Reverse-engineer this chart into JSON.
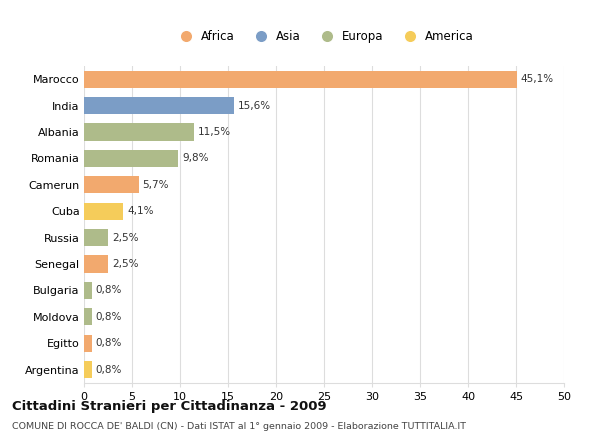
{
  "categories": [
    "Marocco",
    "India",
    "Albania",
    "Romania",
    "Camerun",
    "Cuba",
    "Russia",
    "Senegal",
    "Bulgaria",
    "Moldova",
    "Egitto",
    "Argentina"
  ],
  "values": [
    45.1,
    15.6,
    11.5,
    9.8,
    5.7,
    4.1,
    2.5,
    2.5,
    0.8,
    0.8,
    0.8,
    0.8
  ],
  "labels": [
    "45,1%",
    "15,6%",
    "11,5%",
    "9,8%",
    "5,7%",
    "4,1%",
    "2,5%",
    "2,5%",
    "0,8%",
    "0,8%",
    "0,8%",
    "0,8%"
  ],
  "colors": [
    "#F2A96E",
    "#7B9DC6",
    "#AEBB8A",
    "#AEBB8A",
    "#F2A96E",
    "#F5CC5A",
    "#AEBB8A",
    "#F2A96E",
    "#AEBB8A",
    "#AEBB8A",
    "#F2A96E",
    "#F5CC5A"
  ],
  "legend_labels": [
    "Africa",
    "Asia",
    "Europa",
    "America"
  ],
  "legend_colors": [
    "#F2A96E",
    "#7B9DC6",
    "#AEBB8A",
    "#F5CC5A"
  ],
  "title": "Cittadini Stranieri per Cittadinanza - 2009",
  "subtitle": "COMUNE DI ROCCA DE' BALDI (CN) - Dati ISTAT al 1° gennaio 2009 - Elaborazione TUTTITALIA.IT",
  "xlim": [
    0,
    50
  ],
  "xticks": [
    0,
    5,
    10,
    15,
    20,
    25,
    30,
    35,
    40,
    45,
    50
  ],
  "background_color": "#ffffff",
  "grid_color": "#dddddd",
  "bar_height": 0.65,
  "label_fontsize": 7.5,
  "tick_fontsize": 8,
  "title_fontsize": 9.5,
  "subtitle_fontsize": 6.8
}
